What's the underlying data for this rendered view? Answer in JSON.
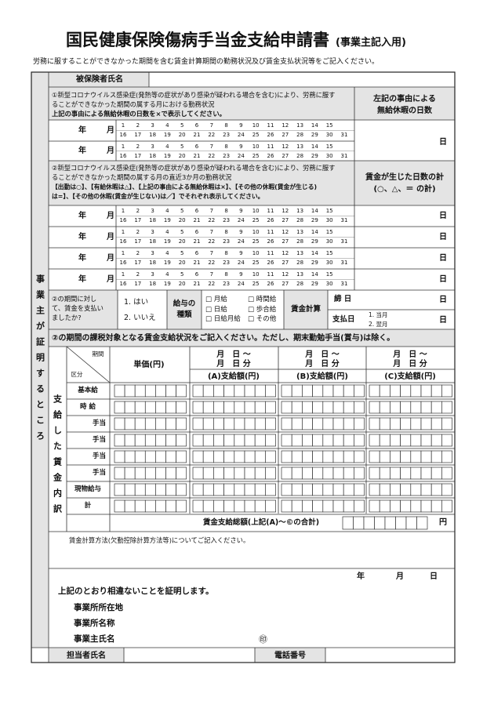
{
  "header": {
    "title": "国民健康保険傷病手当金支給申請書",
    "title_suffix": "(事業主記入用)",
    "instruction": "労務に服することができなかった期間を含む賃金計算期間の勤務状況及び賃金支払状況等をご記入ください。"
  },
  "side_label": "事業主が証明するところ",
  "insured_name_label": "被保険者氏名",
  "section1": {
    "lines": [
      "①新型コロナウイルス感染症(発熱等の症状があり感染が疑われる場合を含む)により、労務に服す",
      "ることができなかった期間の属する月における勤務状況",
      "上記の事由による無給休暇の日数を×で表示してください。"
    ],
    "right_header": [
      "左記の事由による",
      "無給休暇の日数"
    ]
  },
  "section2": {
    "lines": [
      "②新型コロナウイルス感染症(発熱等の症状があり感染が疑われる場合を含む)により、労務に服す",
      "ることができなかった期間の属する月の直近3か月の勤務状況",
      "【出勤は○】、【有給休暇は△】、【上記の事由による無給休暇は×】、【その他の休暇(賃金が生じる)",
      "は=】、【その他の休暇(賃金が生じない)は／】でそれぞれ表示してください。"
    ],
    "right_header": [
      "賃金が生じた日数の計",
      "(○、△、＝ の計)"
    ]
  },
  "calendar": {
    "year": "年",
    "month": "月",
    "days": [
      1,
      2,
      3,
      4,
      5,
      6,
      7,
      8,
      9,
      10,
      11,
      12,
      13,
      14,
      15,
      16,
      17,
      18,
      19,
      20,
      21,
      22,
      23,
      24,
      25,
      26,
      27,
      28,
      29,
      30,
      31
    ],
    "unit": "日"
  },
  "payment": {
    "question": [
      "②の期間に対し",
      "て、賃金を支払い",
      "ましたか?"
    ],
    "answers": [
      "1. はい",
      "2. いいえ"
    ],
    "pay_type_label": [
      "給与の",
      "種類"
    ],
    "pay_types": [
      "□ 月給",
      "□ 時間給",
      "□ 日給",
      "□ 歩合給",
      "□ 日給月給",
      "□ その他"
    ],
    "calc_label": "賃金計算",
    "closing_day": "締 日",
    "pay_day": "支払日",
    "pay_day_options": [
      "1. 当月",
      "2. 翌月"
    ],
    "unit": "日"
  },
  "section3": {
    "title": "②の期間の課税対象となる賃金支給状況をご記入ください。ただし、期末勤勉手当(賞与)は除く。",
    "period_label": "期間",
    "category_label": "区分",
    "unit_price": "単価(円)",
    "period_text": [
      "月　日 ～",
      "月　日 分"
    ],
    "columns": [
      "(A)支給額(円)",
      "(B)支給額(円)",
      "(C)支給額(円)"
    ],
    "side_label": "支給した賃金内訳",
    "rows": [
      "基本給",
      "時 給",
      "手当",
      "手当",
      "手当",
      "手当",
      "現物給与",
      "計"
    ],
    "total_label": "賃金支給総額(上記(A)～©の合計)",
    "total_unit": "円",
    "method_note": "賃金計算方法(欠勤控除計算方法等)についてご記入ください。"
  },
  "certification": {
    "date": [
      "年",
      "月",
      "日"
    ],
    "statement": "上記のとおり相違ないことを証明します。",
    "fields": [
      "事業所所在地",
      "事業所名称",
      "事業主氏名"
    ],
    "seal": "㊞",
    "contact_label": "担当者氏名",
    "phone_label": "電話番号"
  }
}
